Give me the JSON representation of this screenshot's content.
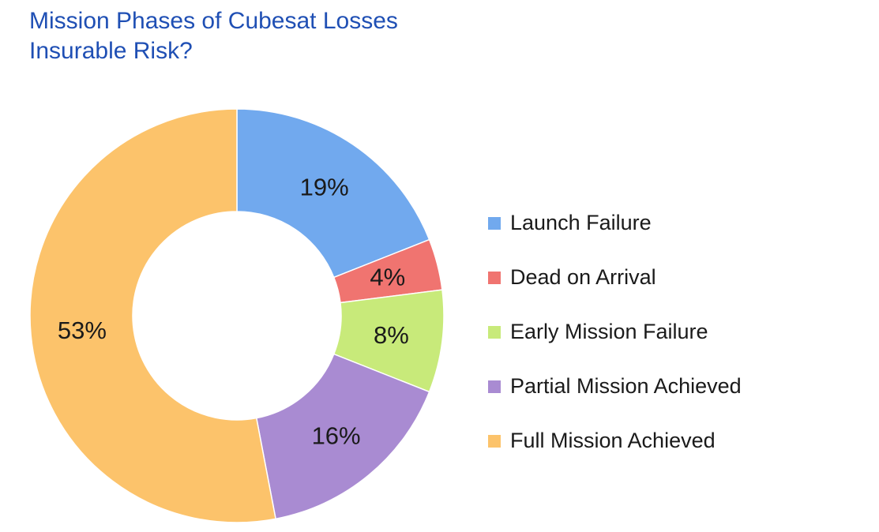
{
  "chart_data": {
    "type": "pie",
    "variant": "donut",
    "title_lines": [
      "Mission Phases of Cubesat Losses",
      "Insurable Risk?"
    ],
    "categories": [
      "Launch Failure",
      "Dead on Arrival",
      "Early Mission Failure",
      "Partial Mission Achieved",
      "Full Mission Achieved"
    ],
    "values": [
      19,
      4,
      8,
      16,
      53
    ],
    "value_labels": [
      "19%",
      "4%",
      "8%",
      "16%",
      "53%"
    ],
    "colors": [
      "#71a9ee",
      "#f07470",
      "#c8ea7a",
      "#a98bd2",
      "#fcc36b"
    ],
    "legend_position": "right",
    "start_angle": "top, clockwise"
  }
}
